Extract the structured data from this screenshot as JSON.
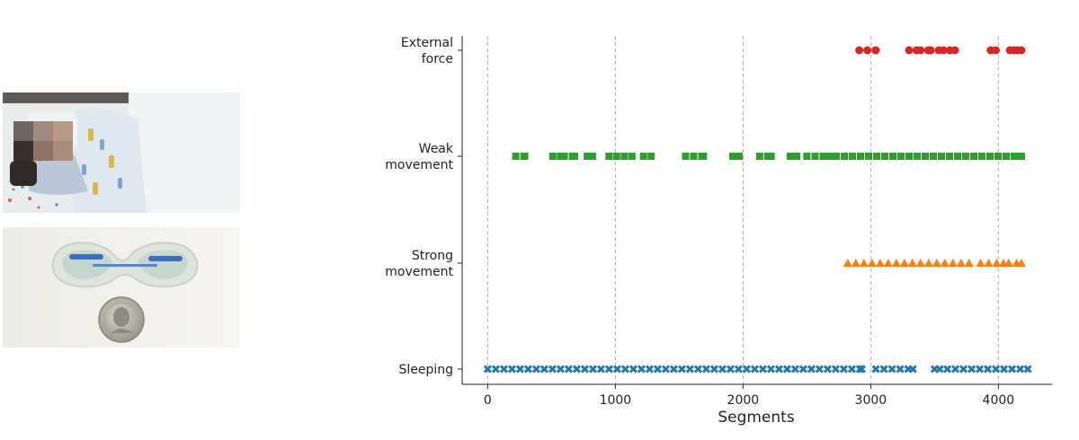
{
  "photos": {
    "infant_scene": "infant-photo",
    "sensor_patch": "sensor-photo"
  },
  "chart_data": {
    "type": "scatter",
    "xlabel": "Segments",
    "ylabel": "",
    "xlim": [
      -200,
      4420
    ],
    "xticks": [
      0,
      1000,
      2000,
      3000,
      4000
    ],
    "grid": "vertical dashed",
    "categories": [
      "Sleeping",
      "Strong\nmovement",
      "Weak\nmovement",
      "External\nforce"
    ],
    "category_labels": [
      [
        "Sleeping"
      ],
      [
        "Strong",
        "movement"
      ],
      [
        "Weak",
        "movement"
      ],
      [
        "External",
        "force"
      ]
    ],
    "series": [
      {
        "category": "Sleeping",
        "marker": "x",
        "color": "#1f77b4",
        "ranges": [
          [
            0,
            2930
          ],
          [
            3040,
            3330
          ],
          [
            3500,
            3540
          ],
          [
            3600,
            4230
          ]
        ]
      },
      {
        "category": "Strong\nmovement",
        "marker": "triangle",
        "color": "#ff7f0e",
        "ranges": [
          [
            2820,
            3770
          ],
          [
            3860,
            4040
          ],
          [
            4080,
            4180
          ]
        ]
      },
      {
        "category": "Weak\nmovement",
        "marker": "square",
        "color": "#2ca02c",
        "ranges": [
          [
            220,
            290
          ],
          [
            510,
            570
          ],
          [
            600,
            680
          ],
          [
            780,
            820
          ],
          [
            950,
            1010
          ],
          [
            1070,
            1130
          ],
          [
            1220,
            1280
          ],
          [
            1550,
            1690
          ],
          [
            1920,
            1970
          ],
          [
            2130,
            2220
          ],
          [
            2370,
            2420
          ],
          [
            2500,
            2680
          ],
          [
            2730,
            4180
          ]
        ]
      },
      {
        "category": "External\nforce",
        "marker": "circle",
        "color": "#d62728",
        "ranges": [
          [
            2910,
            3040
          ],
          [
            3300,
            3360
          ],
          [
            3390,
            3450
          ],
          [
            3470,
            3570
          ],
          [
            3620,
            3660
          ],
          [
            3940,
            3980
          ],
          [
            4090,
            4120
          ],
          [
            4150,
            4180
          ]
        ]
      }
    ]
  }
}
